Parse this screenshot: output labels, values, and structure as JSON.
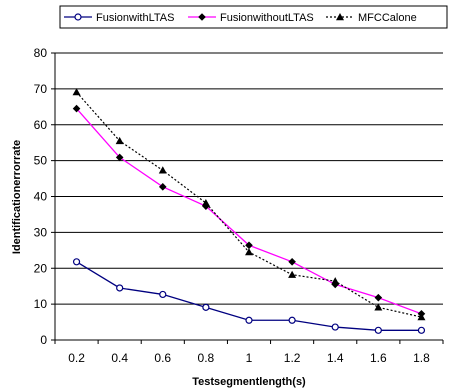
{
  "chart_data": {
    "type": "line",
    "xlabel": "Testsegmentlength(s)",
    "ylabel": "Identificationerrorrate",
    "x": [
      0.2,
      0.4,
      0.6,
      0.8,
      1,
      1.2,
      1.4,
      1.6,
      1.8
    ],
    "x_tick_labels": [
      "0.2",
      "0.4",
      "0.6",
      "0.8",
      "1",
      "1.2",
      "1.4",
      "1.6",
      "1.8"
    ],
    "ylim": [
      0,
      80
    ],
    "y_ticks": [
      0,
      10,
      20,
      30,
      40,
      50,
      60,
      70,
      80
    ],
    "grid": "horizontal",
    "legend_position": "top",
    "series": [
      {
        "name": "FusionwithLTAS",
        "values": [
          21.8,
          14.5,
          12.7,
          9.1,
          5.5,
          5.5,
          3.6,
          2.7,
          2.7
        ],
        "color": "#000080",
        "marker": "circle-open",
        "line_style": "solid"
      },
      {
        "name": "FusionwithoutLTAS",
        "values": [
          64.5,
          50.9,
          42.7,
          37.3,
          26.4,
          21.8,
          15.5,
          11.8,
          7.3
        ],
        "color": "#ff00ff",
        "marker": "diamond",
        "line_style": "solid"
      },
      {
        "name": "MFCCalone",
        "values": [
          69.1,
          55.5,
          47.3,
          38.2,
          24.5,
          18.2,
          16.4,
          9.1,
          6.4
        ],
        "color": "#000000",
        "marker": "triangle",
        "line_style": "dotted"
      }
    ]
  }
}
